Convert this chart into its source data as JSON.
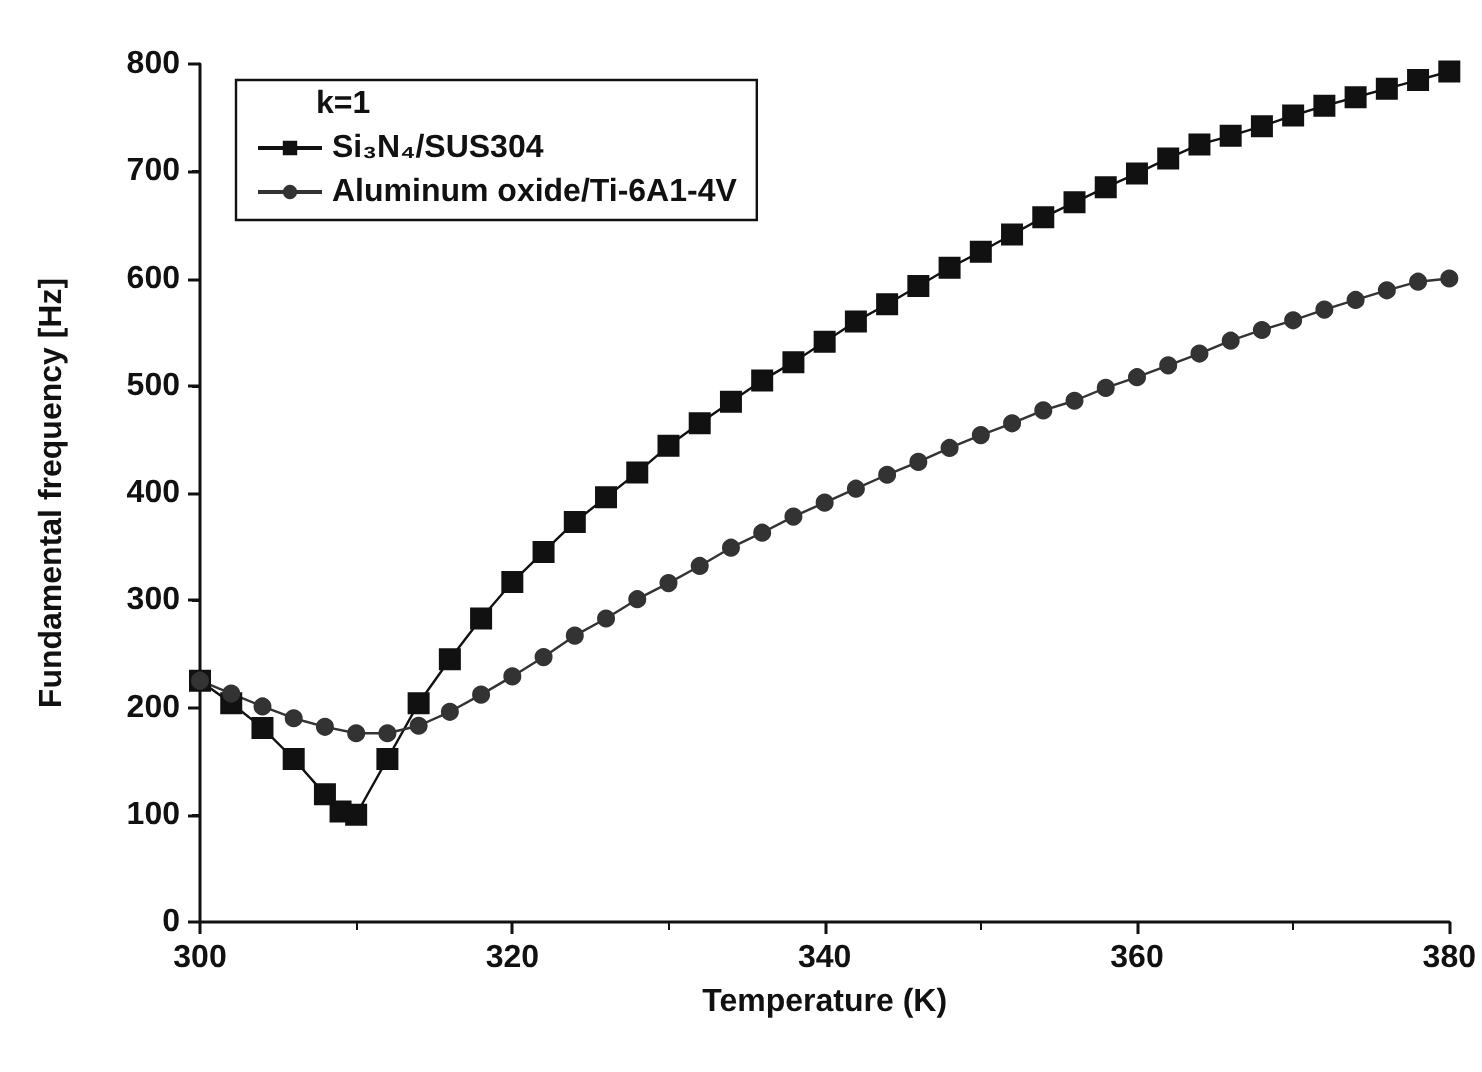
{
  "chart_data": {
    "type": "line",
    "xlabel": "Temperature (K)",
    "ylabel": "Fundamental frequency [Hz]",
    "legend_title": "k=1",
    "legend": "top left",
    "grid": false,
    "line_style": "solid",
    "xlim": [
      300,
      380
    ],
    "xticks": [
      300,
      320,
      340,
      360,
      380
    ],
    "ylim": [
      0,
      800
    ],
    "yticks": [
      0,
      100,
      200,
      300,
      400,
      500,
      600,
      700,
      800
    ],
    "series": [
      {
        "name": "Si₃N₄/SUS304",
        "color": "#111111",
        "marker": "square",
        "x": [
          300,
          302,
          304,
          306,
          308,
          309,
          310,
          312,
          314,
          316,
          318,
          320,
          322,
          324,
          326,
          328,
          330,
          332,
          334,
          336,
          338,
          340,
          342,
          344,
          346,
          348,
          350,
          352,
          354,
          356,
          358,
          360,
          362,
          364,
          366,
          368,
          370,
          372,
          374,
          376,
          378,
          380
        ],
        "values": [
          225,
          204,
          181,
          152,
          119,
          103,
          100,
          152,
          204,
          245,
          283,
          317,
          345,
          373,
          396,
          419,
          444,
          465,
          485,
          505,
          522,
          541,
          560,
          576,
          593,
          610,
          625,
          641,
          657,
          671,
          685,
          698,
          712,
          725,
          733,
          742,
          752,
          761,
          769,
          777,
          785,
          793
        ]
      },
      {
        "name": "Aluminum oxide/Ti-6A1-4V",
        "color": "#333333",
        "marker": "circle",
        "x": [
          300,
          302,
          304,
          306,
          308,
          310,
          312,
          314,
          316,
          318,
          320,
          322,
          324,
          326,
          328,
          330,
          332,
          334,
          336,
          338,
          340,
          342,
          344,
          346,
          348,
          350,
          352,
          354,
          356,
          358,
          360,
          362,
          364,
          366,
          368,
          370,
          372,
          374,
          376,
          378,
          380
        ],
        "values": [
          225,
          213,
          201,
          190,
          182,
          176,
          176,
          183,
          196,
          212,
          229,
          247,
          267,
          283,
          301,
          316,
          332,
          349,
          363,
          378,
          391,
          404,
          417,
          429,
          442,
          454,
          465,
          477,
          486,
          498,
          508,
          519,
          530,
          542,
          552,
          561,
          571,
          580,
          589,
          597,
          600
        ]
      }
    ]
  }
}
